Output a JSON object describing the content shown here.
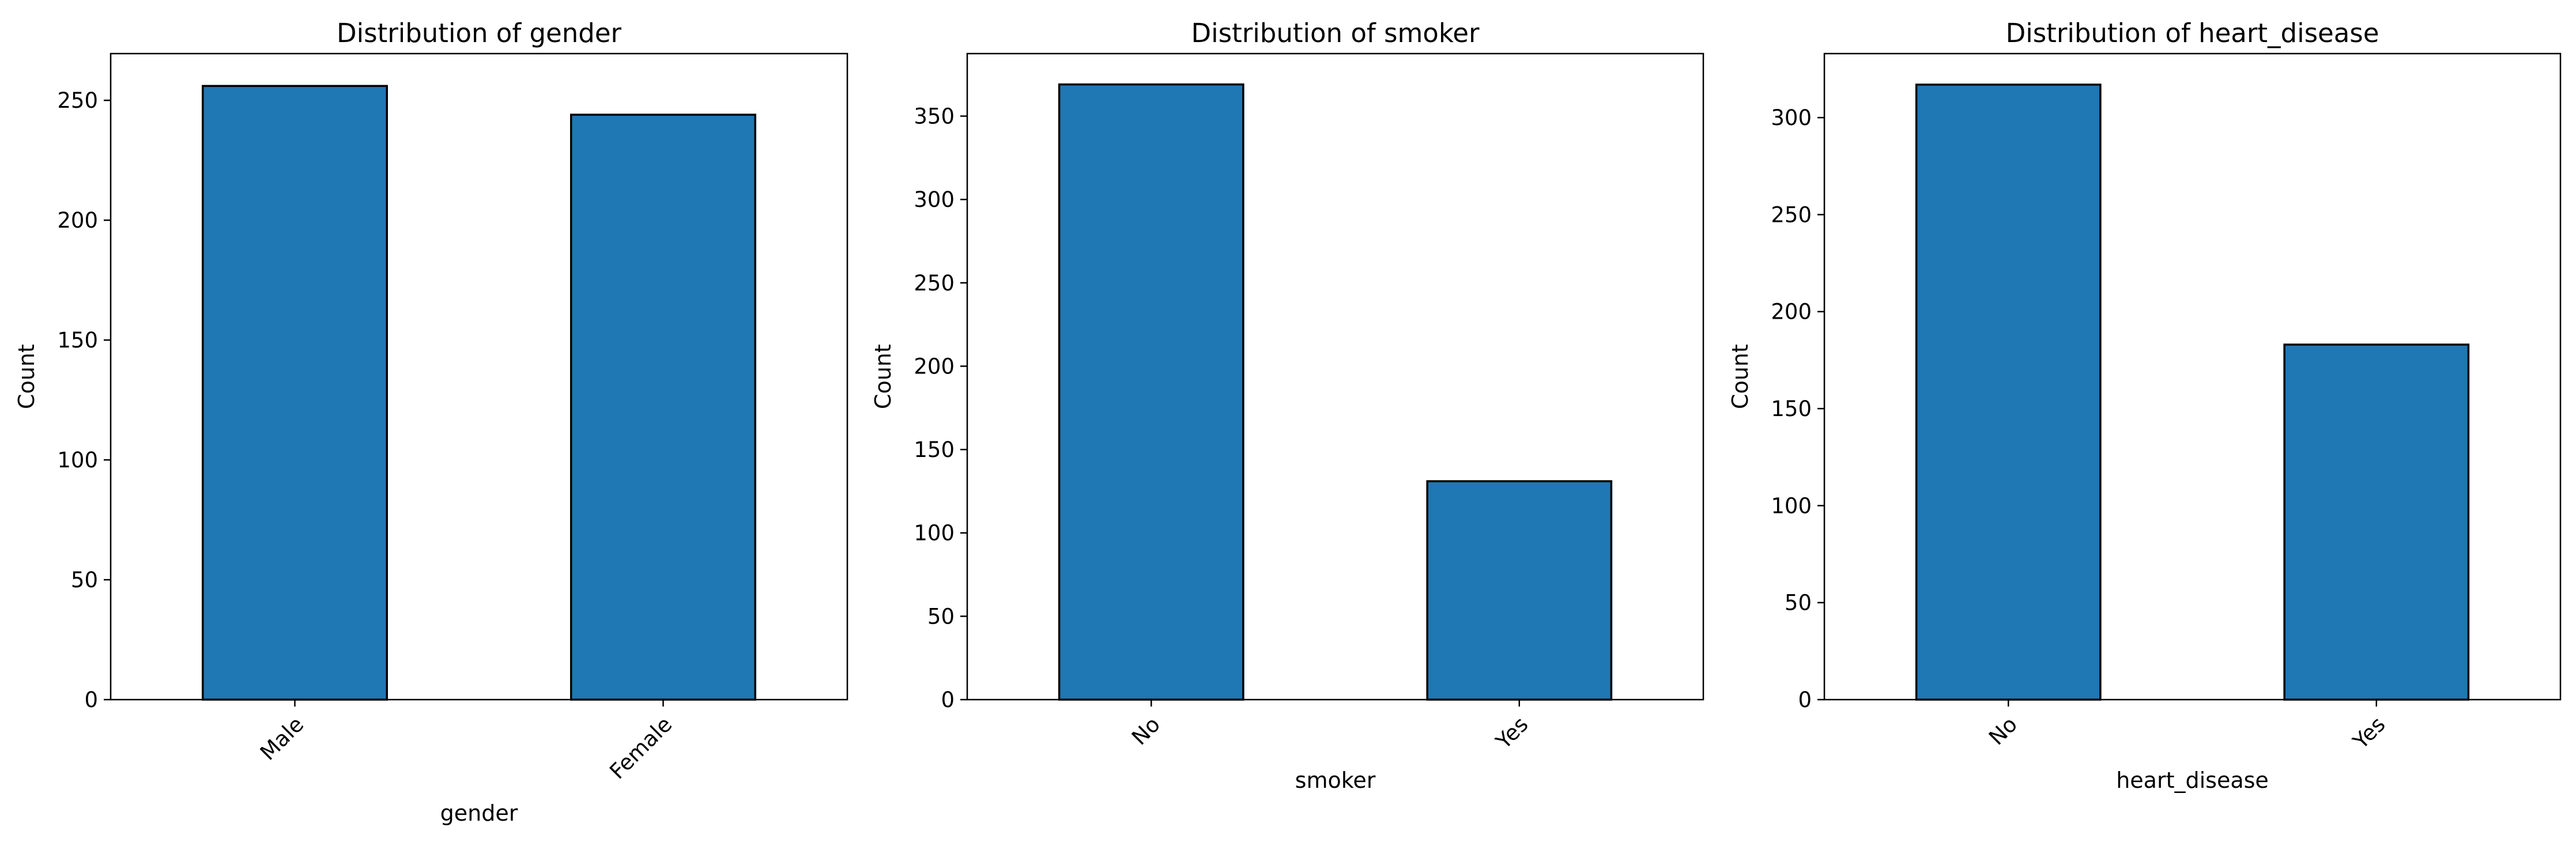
{
  "chart_data": [
    {
      "type": "bar",
      "title": "Distribution of gender",
      "xlabel": "gender",
      "ylabel": "Count",
      "categories": [
        "Male",
        "Female"
      ],
      "values": [
        256,
        244
      ],
      "ylim": [
        0,
        269.5
      ],
      "yticks": [
        0,
        50,
        100,
        150,
        200,
        250
      ],
      "grid": false,
      "bar_color": "#1f77b4",
      "edge_color": "#000000"
    },
    {
      "type": "bar",
      "title": "Distribution of smoker",
      "xlabel": "smoker",
      "ylabel": "Count",
      "categories": [
        "No",
        "Yes"
      ],
      "values": [
        369,
        131
      ],
      "ylim": [
        0,
        387.5
      ],
      "yticks": [
        0,
        50,
        100,
        150,
        200,
        250,
        300,
        350
      ],
      "grid": false,
      "bar_color": "#1f77b4",
      "edge_color": "#000000"
    },
    {
      "type": "bar",
      "title": "Distribution of heart_disease",
      "xlabel": "heart_disease",
      "ylabel": "Count",
      "categories": [
        "No",
        "Yes"
      ],
      "values": [
        317,
        183
      ],
      "ylim": [
        0,
        333
      ],
      "yticks": [
        0,
        50,
        100,
        150,
        200,
        250,
        300
      ],
      "grid": false,
      "bar_color": "#1f77b4",
      "edge_color": "#000000"
    }
  ]
}
